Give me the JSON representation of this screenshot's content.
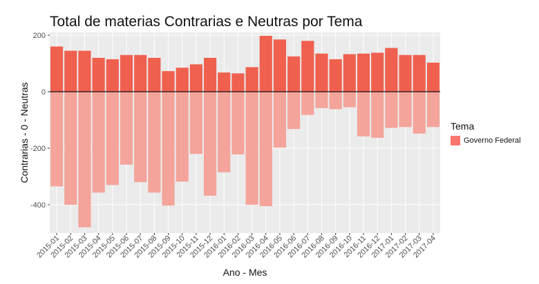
{
  "chart_data": {
    "type": "bar",
    "title": "Total de materias Contrarias e Neutras por Tema",
    "xlabel": "Ano - Mes",
    "ylabel": "Contrarias - 0 - Neutras",
    "ylim": [
      -500,
      210
    ],
    "yticks": [
      200,
      0,
      -200,
      -400
    ],
    "grid": true,
    "legend": {
      "title": "Tema",
      "position": "right",
      "entries": [
        "Governo Federal"
      ]
    },
    "colors": {
      "contrarias": "#f0604f",
      "neutras": "#f4a49a",
      "panel": "#ebebeb",
      "grid": "#ffffff",
      "zero_line": "#000000"
    },
    "categories": [
      "2015-01",
      "2015-02",
      "2015-03",
      "2015-04",
      "2015-05",
      "2015-06",
      "2015-07",
      "2015-08",
      "2015-09",
      "2015-10",
      "2015-11",
      "2015-12",
      "2016-01",
      "2016-02",
      "2016-03",
      "2016-04",
      "2016-05",
      "2016-06",
      "2016-07",
      "2016-08",
      "2016-09",
      "2016-10",
      "2016-11",
      "2016-12",
      "2017-01",
      "2017-02",
      "2017-03",
      "2017-04"
    ],
    "series": [
      {
        "key": "contrarias",
        "values": [
          160,
          145,
          145,
          120,
          115,
          130,
          130,
          120,
          73,
          85,
          97,
          120,
          68,
          65,
          87,
          198,
          185,
          125,
          180,
          135,
          115,
          133,
          135,
          138,
          155,
          130,
          130,
          103
        ]
      },
      {
        "key": "neutras",
        "values": [
          -335,
          -400,
          -480,
          -357,
          -330,
          -258,
          -320,
          -357,
          -403,
          -318,
          -220,
          -368,
          -285,
          -222,
          -400,
          -405,
          -198,
          -132,
          -82,
          -58,
          -62,
          -55,
          -158,
          -163,
          -128,
          -125,
          -148,
          -125
        ]
      }
    ]
  }
}
